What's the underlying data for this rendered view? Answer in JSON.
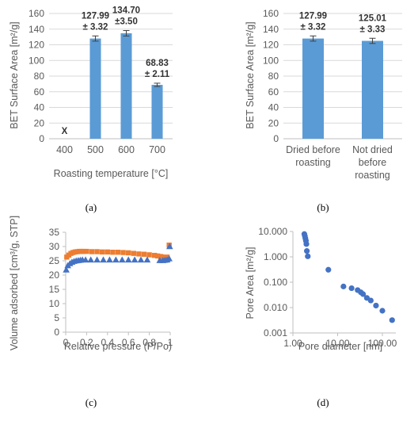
{
  "chart_data": [
    {
      "type": "bar",
      "panel_label": "(a)",
      "ylabel": "BET Surface Area [m²/g]",
      "xlabel": "Roasting temperature [°C]",
      "ylim": [
        0,
        160
      ],
      "yticks": [
        "0",
        "20",
        "40",
        "60",
        "80",
        "100",
        "120",
        "140",
        "160"
      ],
      "categories": [
        "400",
        "500",
        "600",
        "700"
      ],
      "values": [
        null,
        127.99,
        134.7,
        68.83
      ],
      "errors": [
        null,
        3.32,
        3.5,
        2.11
      ],
      "data_labels": [
        {
          "line1": "X",
          "line2": ""
        },
        {
          "line1": "127.99",
          "line2": "± 3.32"
        },
        {
          "line1": "134.70",
          "line2": "±3.50"
        },
        {
          "line1": "68.83",
          "line2": "± 2.11"
        }
      ],
      "grid": true,
      "color": "#5b9bd5"
    },
    {
      "type": "bar",
      "panel_label": "(b)",
      "ylabel": "BET Surface Area [m²/g]",
      "xlabel": "",
      "ylim": [
        0,
        160
      ],
      "yticks": [
        "0",
        "20",
        "40",
        "60",
        "80",
        "100",
        "120",
        "140",
        "160"
      ],
      "categories": [
        {
          "line1": "Dried before",
          "line2": "roasting",
          "line3": ""
        },
        {
          "line1": "Not dried",
          "line2": "before",
          "line3": "roasting"
        }
      ],
      "values": [
        127.99,
        125.01
      ],
      "errors": [
        3.32,
        3.33
      ],
      "data_labels": [
        {
          "line1": "127.99",
          "line2": "± 3.32"
        },
        {
          "line1": "125.01",
          "line2": "± 3.33"
        }
      ],
      "grid": true,
      "color": "#5b9bd5"
    },
    {
      "type": "scatter",
      "panel_label": "(c)",
      "ylabel": "Volume adsorbed [cm³/g, STP]",
      "xlabel": "Relative pressure (P/Po)",
      "xlim": [
        0,
        1
      ],
      "ylim": [
        0,
        35
      ],
      "xticks": [
        "0",
        "0.2",
        "0.4",
        "0.6",
        "0.8",
        "1"
      ],
      "yticks": [
        "0",
        "5",
        "10",
        "15",
        "20",
        "25",
        "30",
        "35"
      ],
      "grid": false,
      "series": [
        {
          "marker": "square",
          "color": "#ed7d31",
          "x": [
            0.01,
            0.03,
            0.05,
            0.07,
            0.09,
            0.11,
            0.13,
            0.15,
            0.17,
            0.2,
            0.25,
            0.3,
            0.35,
            0.4,
            0.45,
            0.5,
            0.55,
            0.6,
            0.65,
            0.7,
            0.75,
            0.8,
            0.85,
            0.88,
            0.91,
            0.93,
            0.95,
            0.97,
            0.99
          ],
          "y": [
            26.3,
            27.0,
            27.6,
            27.9,
            28.1,
            28.2,
            28.3,
            28.3,
            28.3,
            28.3,
            28.2,
            28.2,
            28.1,
            28.1,
            28.0,
            28.0,
            27.9,
            27.8,
            27.6,
            27.4,
            27.3,
            27.1,
            26.9,
            26.7,
            26.5,
            26.3,
            26.2,
            26.3,
            30.5
          ]
        },
        {
          "marker": "triangle",
          "color": "#4472c4",
          "x": [
            0.005,
            0.02,
            0.04,
            0.06,
            0.08,
            0.1,
            0.12,
            0.14,
            0.16,
            0.19,
            0.24,
            0.3,
            0.36,
            0.42,
            0.48,
            0.54,
            0.6,
            0.66,
            0.72,
            0.78,
            0.9,
            0.93,
            0.95,
            0.97,
            0.99,
            0.995
          ],
          "y": [
            21.8,
            23.3,
            24.0,
            24.5,
            24.8,
            25.0,
            25.1,
            25.2,
            25.3,
            25.3,
            25.3,
            25.3,
            25.3,
            25.3,
            25.3,
            25.3,
            25.3,
            25.3,
            25.3,
            25.3,
            25.1,
            25.1,
            25.2,
            25.3,
            25.7,
            30.0
          ]
        }
      ]
    },
    {
      "type": "scatter",
      "panel_label": "(d)",
      "ylabel": "Pore Area [m²/g]",
      "xlabel": "Pore diameter [nm]",
      "xscale": "log",
      "yscale": "log",
      "xlim": [
        1,
        200
      ],
      "ylim": [
        0.001,
        10
      ],
      "xticks": [
        {
          "value": 1,
          "label": "1.00"
        },
        {
          "value": 10,
          "label": "10.00"
        },
        {
          "value": 100,
          "label": "100.00"
        }
      ],
      "yticks": [
        {
          "value": 0.001,
          "label": "0.001"
        },
        {
          "value": 0.01,
          "label": "0.010"
        },
        {
          "value": 0.1,
          "label": "0.100"
        },
        {
          "value": 1,
          "label": "1.000"
        },
        {
          "value": 10,
          "label": "10.000"
        }
      ],
      "grid": false,
      "series": [
        {
          "marker": "circle",
          "color": "#4472c4",
          "x": [
            1.8,
            1.85,
            1.9,
            1.95,
            2.0,
            2.05,
            2.15,
            6.2,
            13.5,
            20.5,
            28,
            33,
            37,
            45,
            55,
            72,
            100,
            165
          ],
          "y": [
            7.9,
            6.6,
            5.4,
            4.3,
            3.2,
            1.7,
            1.05,
            0.31,
            0.068,
            0.058,
            0.049,
            0.04,
            0.034,
            0.024,
            0.019,
            0.012,
            0.0075,
            0.0032
          ]
        }
      ]
    }
  ]
}
